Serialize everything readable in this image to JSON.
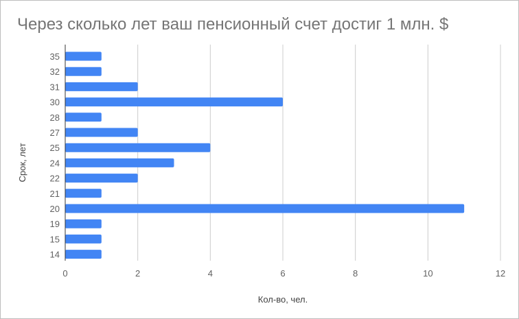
{
  "chart_data": {
    "type": "bar",
    "orientation": "horizontal",
    "title": "Через сколько лет ваш пенсионный счет достиг 1 млн. $",
    "xlabel": "Кол-во, чел.",
    "ylabel": "Срок, лет",
    "categories": [
      "35",
      "32",
      "31",
      "30",
      "28",
      "27",
      "25",
      "24",
      "22",
      "21",
      "20",
      "19",
      "15",
      "14"
    ],
    "values": [
      1,
      1,
      2,
      6,
      1,
      2,
      4,
      3,
      2,
      1,
      11,
      1,
      1,
      1
    ],
    "xlim": [
      0,
      12
    ],
    "xticks": [
      "0",
      "2",
      "4",
      "6",
      "8",
      "10",
      "12"
    ],
    "grid": true,
    "bar_color": "#4285f4",
    "grid_color": "#cccccc"
  }
}
